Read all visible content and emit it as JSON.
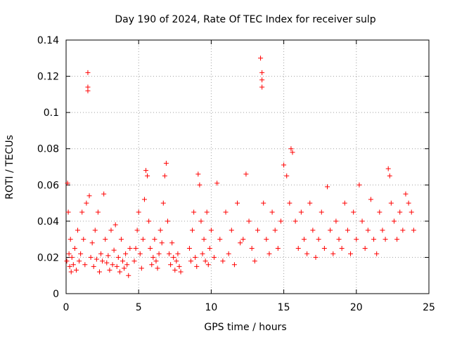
{
  "chart_data": {
    "type": "scatter",
    "title": "Day 190 of 2024, Rate Of TEC Index for receiver sulp",
    "xlabel": "GPS time / hours",
    "ylabel": "ROTI / TECUs",
    "xlim": [
      0,
      25
    ],
    "ylim": [
      0,
      0.14
    ],
    "xticks": [
      0,
      5,
      10,
      15,
      20,
      25
    ],
    "xtick_labels": [
      "0",
      "5",
      "10",
      "15",
      "20",
      "25"
    ],
    "yticks": [
      0,
      0.02,
      0.04,
      0.06,
      0.08,
      0.1,
      0.12,
      0.14
    ],
    "ytick_labels": [
      "0",
      "0.02",
      "0.04",
      "0.06",
      "0.08",
      "0.1",
      "0.12",
      "0.14"
    ],
    "grid": true,
    "marker": "plus",
    "color": "#ff0000",
    "series": [
      {
        "name": "ROTI",
        "x": [
          0.05,
          0.1,
          0.15,
          0.2,
          0.25,
          0.3,
          0.35,
          0.4,
          0.5,
          0.6,
          0.7,
          0.8,
          0.9,
          1.0,
          1.1,
          1.2,
          1.3,
          1.4,
          1.5,
          1.5,
          1.5,
          1.6,
          1.7,
          1.8,
          1.9,
          2.0,
          2.1,
          2.2,
          2.3,
          2.4,
          2.5,
          2.6,
          2.7,
          2.8,
          2.9,
          3.0,
          3.1,
          3.2,
          3.3,
          3.4,
          3.5,
          3.6,
          3.7,
          3.8,
          3.9,
          4.0,
          4.1,
          4.2,
          4.3,
          4.4,
          4.7,
          4.8,
          4.9,
          5.0,
          5.1,
          5.2,
          5.3,
          5.4,
          5.5,
          5.6,
          5.7,
          5.8,
          5.9,
          6.0,
          6.1,
          6.2,
          6.3,
          6.4,
          6.5,
          6.6,
          6.7,
          6.8,
          6.9,
          7.0,
          7.1,
          7.2,
          7.3,
          7.4,
          7.5,
          7.6,
          7.7,
          7.8,
          7.9,
          8.5,
          8.6,
          8.7,
          8.8,
          8.9,
          9.0,
          9.1,
          9.2,
          9.3,
          9.4,
          9.5,
          9.6,
          9.7,
          9.8,
          9.9,
          10.0,
          10.2,
          10.4,
          10.6,
          10.8,
          11.0,
          11.2,
          11.4,
          11.6,
          11.8,
          12.0,
          12.2,
          12.4,
          12.6,
          12.8,
          13.0,
          13.2,
          13.4,
          13.5,
          13.5,
          13.5,
          13.6,
          13.8,
          14.0,
          14.2,
          14.4,
          14.6,
          14.8,
          15.0,
          15.2,
          15.4,
          15.5,
          15.6,
          15.8,
          16.0,
          16.2,
          16.4,
          16.6,
          16.8,
          17.0,
          17.2,
          17.4,
          17.6,
          17.8,
          18.0,
          18.2,
          18.4,
          18.6,
          18.8,
          19.0,
          19.2,
          19.4,
          19.6,
          19.8,
          20.0,
          20.2,
          20.4,
          20.6,
          20.8,
          21.0,
          21.2,
          21.4,
          21.6,
          21.8,
          22.0,
          22.2,
          22.3,
          22.4,
          22.6,
          22.8,
          23.0,
          23.2,
          23.4,
          23.6,
          23.8,
          23.95
        ],
        "y": [
          0.018,
          0.061,
          0.045,
          0.022,
          0.015,
          0.03,
          0.012,
          0.02,
          0.016,
          0.025,
          0.013,
          0.035,
          0.018,
          0.022,
          0.045,
          0.03,
          0.016,
          0.05,
          0.122,
          0.114,
          0.112,
          0.054,
          0.02,
          0.028,
          0.015,
          0.035,
          0.019,
          0.045,
          0.012,
          0.022,
          0.018,
          0.055,
          0.03,
          0.017,
          0.021,
          0.013,
          0.035,
          0.016,
          0.024,
          0.038,
          0.015,
          0.02,
          0.012,
          0.03,
          0.018,
          0.014,
          0.022,
          0.016,
          0.01,
          0.025,
          0.018,
          0.025,
          0.035,
          0.045,
          0.022,
          0.014,
          0.03,
          0.052,
          0.068,
          0.065,
          0.04,
          0.025,
          0.016,
          0.02,
          0.03,
          0.018,
          0.014,
          0.022,
          0.035,
          0.028,
          0.05,
          0.065,
          0.072,
          0.04,
          0.022,
          0.016,
          0.028,
          0.02,
          0.013,
          0.018,
          0.022,
          0.015,
          0.012,
          0.025,
          0.018,
          0.035,
          0.045,
          0.02,
          0.015,
          0.066,
          0.06,
          0.04,
          0.022,
          0.03,
          0.018,
          0.045,
          0.016,
          0.025,
          0.035,
          0.02,
          0.061,
          0.03,
          0.018,
          0.045,
          0.022,
          0.035,
          0.016,
          0.05,
          0.028,
          0.03,
          0.066,
          0.04,
          0.025,
          0.018,
          0.035,
          0.13,
          0.122,
          0.118,
          0.114,
          0.05,
          0.03,
          0.022,
          0.045,
          0.035,
          0.025,
          0.04,
          0.071,
          0.065,
          0.05,
          0.08,
          0.078,
          0.04,
          0.025,
          0.045,
          0.03,
          0.022,
          0.05,
          0.035,
          0.02,
          0.03,
          0.045,
          0.025,
          0.059,
          0.035,
          0.022,
          0.04,
          0.03,
          0.025,
          0.05,
          0.035,
          0.022,
          0.045,
          0.03,
          0.06,
          0.04,
          0.025,
          0.035,
          0.052,
          0.03,
          0.022,
          0.045,
          0.035,
          0.03,
          0.069,
          0.065,
          0.05,
          0.04,
          0.03,
          0.045,
          0.035,
          0.055,
          0.05,
          0.045,
          0.035
        ]
      }
    ]
  }
}
